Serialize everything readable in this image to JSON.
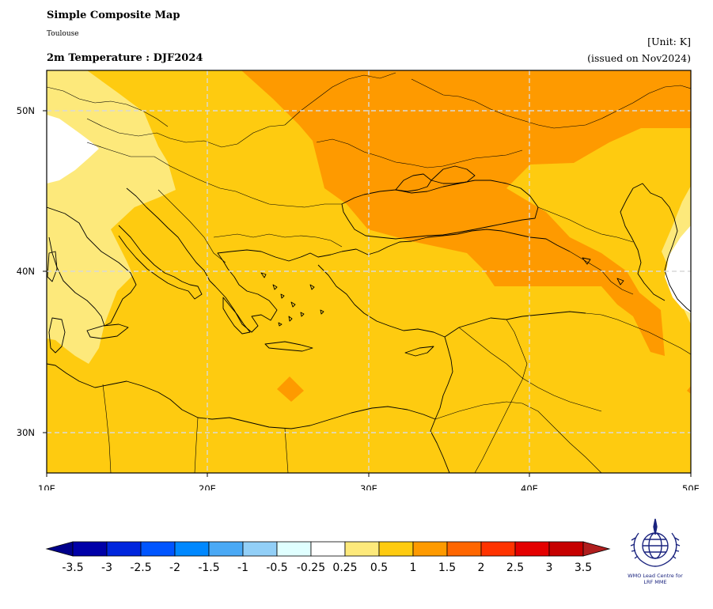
{
  "header": {
    "title": "Simple Composite Map",
    "location": "Toulouse",
    "variable_title": "2m Temperature : DJF2024",
    "unit": "[Unit: K]",
    "issued": "(issued on Nov2024)"
  },
  "map": {
    "lon_range": [
      10,
      50
    ],
    "lat_range": [
      27.5,
      52.5
    ],
    "lon_ticks": [
      "10E",
      "20E",
      "30E",
      "40E",
      "50E"
    ],
    "lat_ticks": [
      "30N",
      "40N",
      "50N"
    ],
    "grid": true,
    "dominant_anomaly_class": "0.5 to 1",
    "warm_anomaly_class": "1 to 1.5 (Black Sea, Caucasus, eastern Europe)",
    "cool_anomaly_class": "0.25 to 0.5 (Alps, western Italy, Tunisia)",
    "near_zero_class": "-0.25 to 0.25 (Switzerland, Caspian coast)"
  },
  "colorbar": {
    "labels": [
      "-3.5",
      "-3",
      "-2.5",
      "-2",
      "-1.5",
      "-1",
      "-0.5",
      "-0.25",
      "0.25",
      "0.5",
      "1",
      "1.5",
      "2",
      "2.5",
      "3",
      "3.5"
    ],
    "colors": [
      "#0000a8",
      "#0026dd",
      "#0055ff",
      "#0088ff",
      "#4aa9f5",
      "#92cff7",
      "#e0ffff",
      "#ffffff",
      "#fde97b",
      "#fecb10",
      "#fe9a00",
      "#ff6600",
      "#ff3300",
      "#e40000",
      "#c60000"
    ],
    "under_color": "#00008b",
    "over_color": "#b01e1e"
  },
  "logo": {
    "line1": "WMO Lead Centre for",
    "line2": "LRF MME",
    "color": "#1a237e"
  }
}
